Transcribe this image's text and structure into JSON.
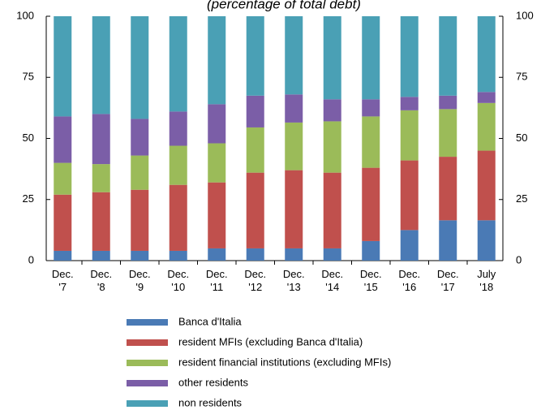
{
  "chart_data": {
    "type": "bar",
    "stacked": true,
    "subtitle": "(percentage of total debt)",
    "categories": [
      "Dec. '7",
      "Dec. '8",
      "Dec. '9",
      "Dec. '10",
      "Dec. '11",
      "Dec. '12",
      "Dec. '13",
      "Dec. '14",
      "Dec. '15",
      "Dec. '16",
      "Dec. '17",
      "July '18"
    ],
    "series": [
      {
        "name": "Banca d'Italia",
        "color": "#4a7ab5",
        "values": [
          4,
          4,
          4,
          4,
          5,
          5,
          5,
          5,
          8,
          12.5,
          16.5,
          16.5
        ]
      },
      {
        "name": "resident MFIs (excluding Banca d'Italia)",
        "color": "#c0504d",
        "values": [
          23,
          24,
          25,
          27,
          27,
          31,
          32,
          31,
          30,
          28.5,
          26,
          28.5
        ]
      },
      {
        "name": "resident financial institutions (excluding MFIs)",
        "color": "#9bbb59",
        "values": [
          13,
          11.5,
          14,
          16,
          16,
          18.5,
          19.5,
          21,
          21,
          20.5,
          19.5,
          19.5
        ]
      },
      {
        "name": "other residents",
        "color": "#7b5ea7",
        "values": [
          19,
          20.5,
          15,
          14,
          16,
          13,
          11.5,
          9,
          7,
          5.5,
          5.5,
          4.5
        ]
      },
      {
        "name": "non residents",
        "color": "#4aa0b5",
        "values": [
          41,
          40,
          42,
          39,
          36,
          32.5,
          32,
          34,
          34,
          33,
          32.5,
          31
        ]
      }
    ],
    "ylim": [
      0,
      100
    ],
    "yticks": [
      0,
      25,
      50,
      75,
      100
    ],
    "y2lim": [
      0,
      100
    ],
    "y2ticks": [
      0,
      25,
      50,
      75,
      100
    ],
    "grid": false
  }
}
